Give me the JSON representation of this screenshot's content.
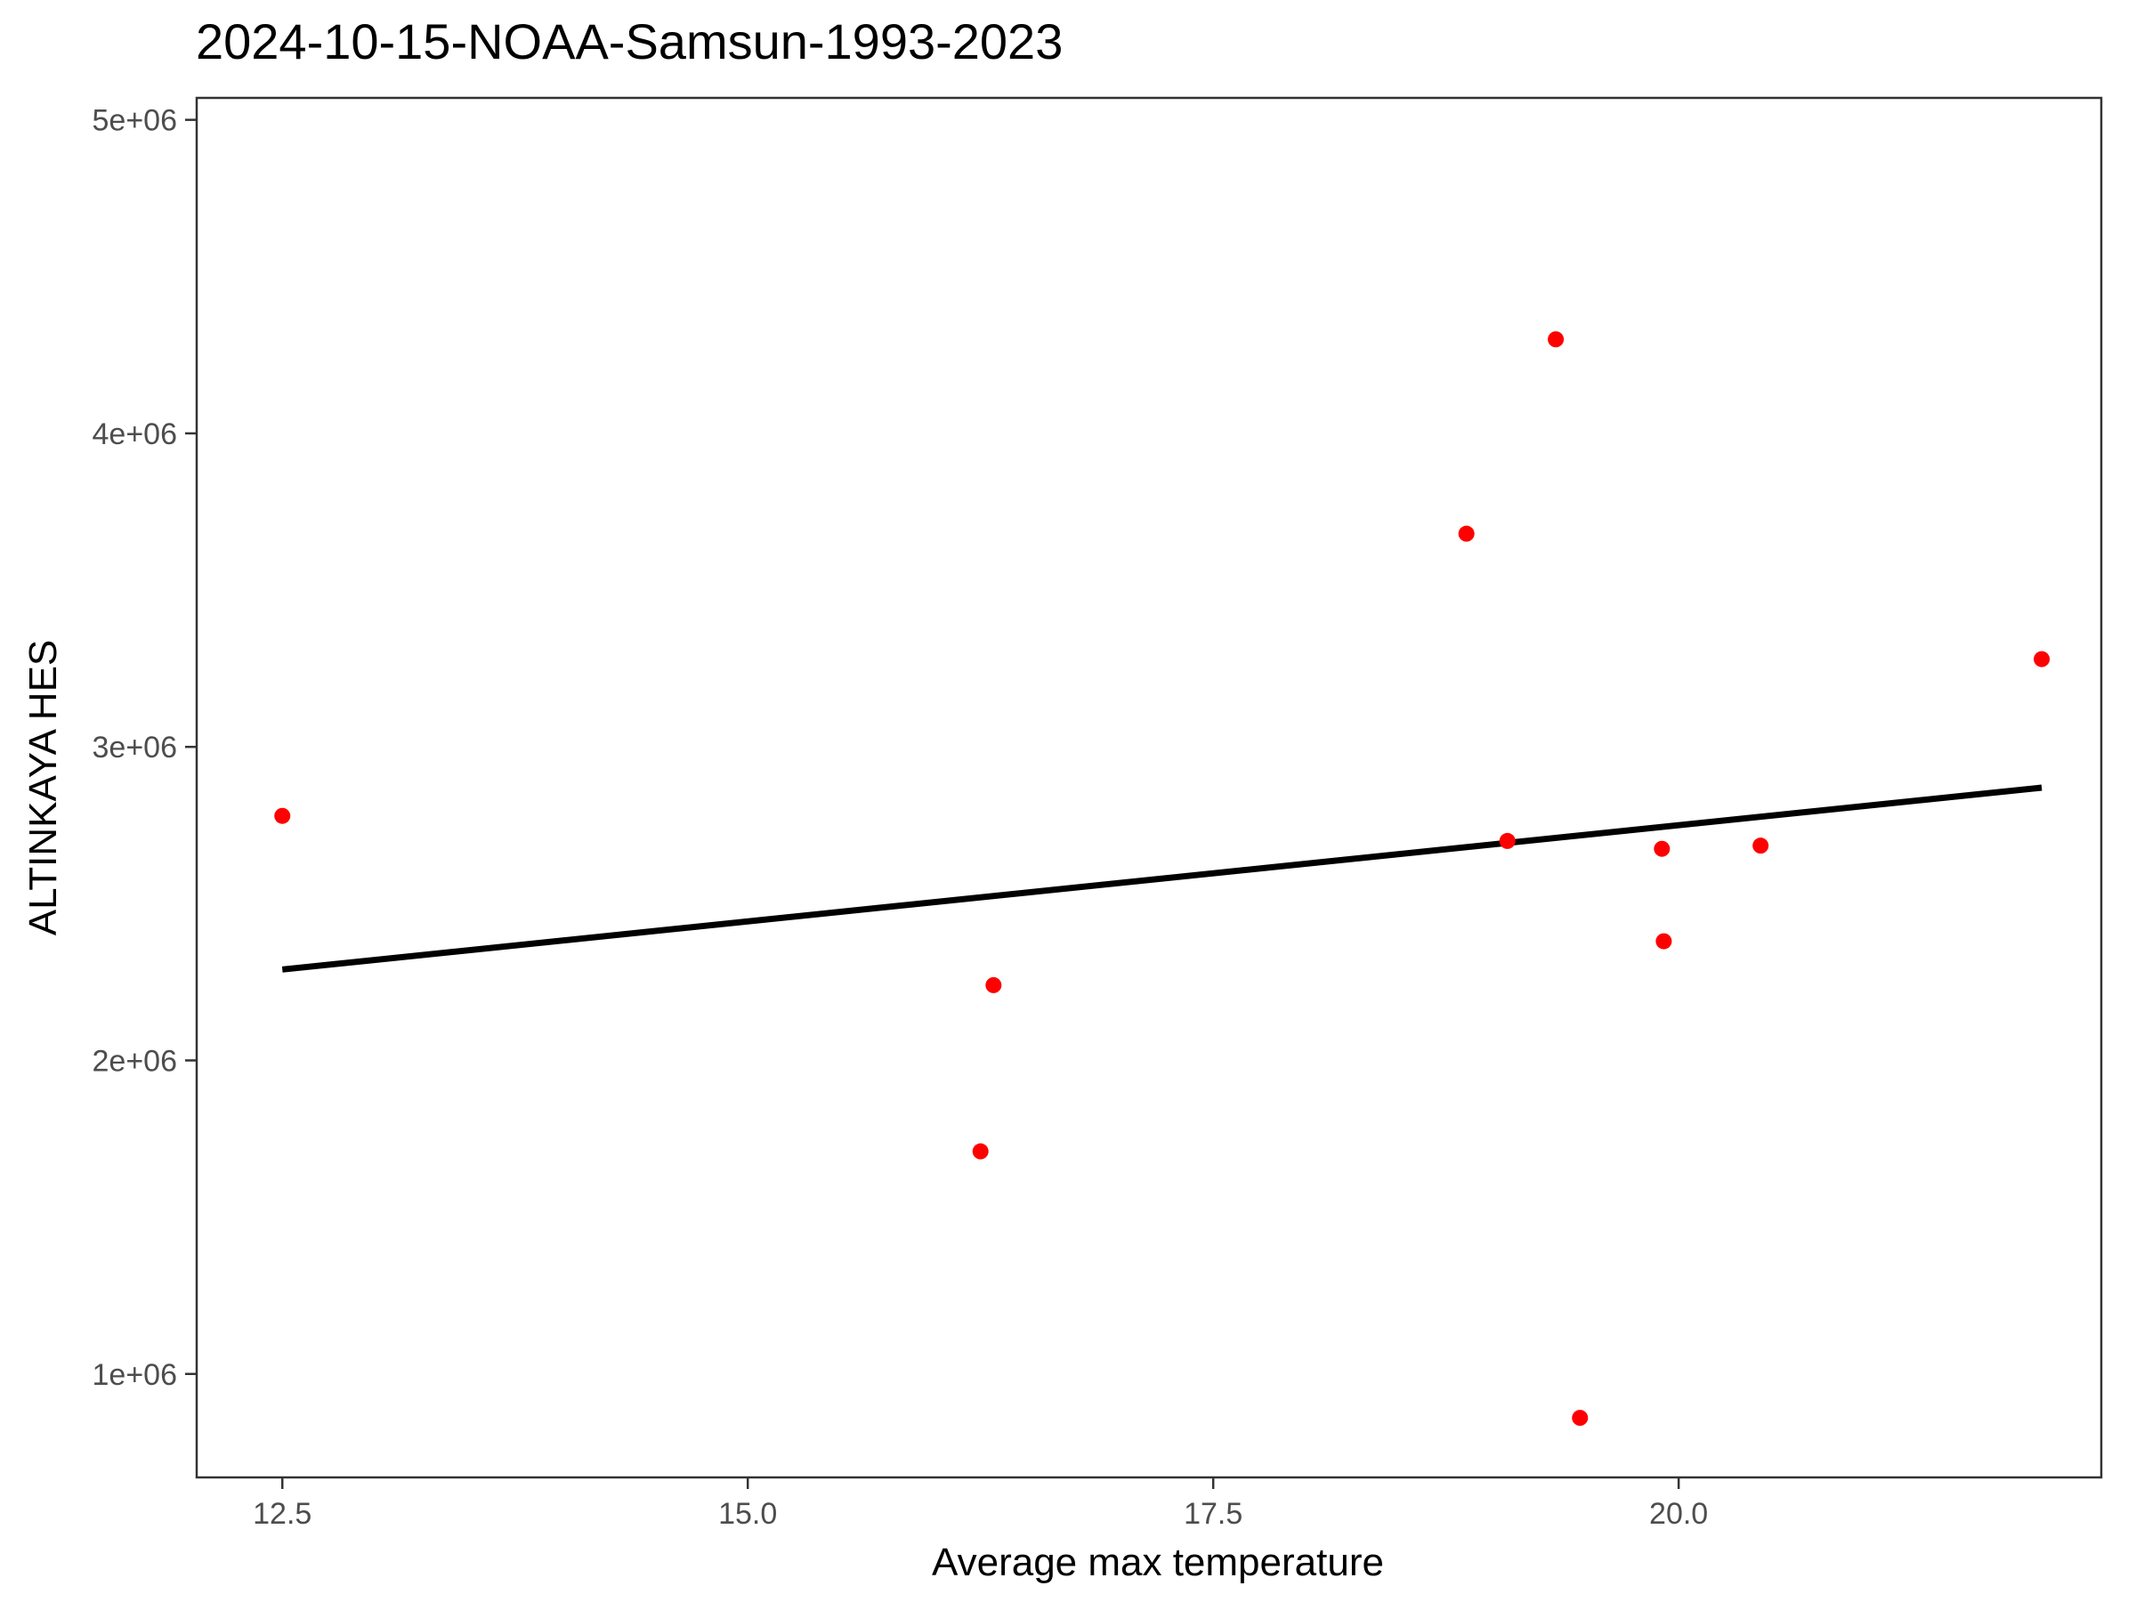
{
  "chart_data": {
    "type": "scatter",
    "title": "2024-10-15-NOAA-Samsun-1993-2023",
    "xlabel": "Average max temperature",
    "ylabel": "ALTINKAYA HES",
    "xlim": [
      12.04,
      22.27
    ],
    "ylim": [
      670000,
      5070000
    ],
    "x_ticks": [
      12.5,
      15.0,
      17.5,
      20.0
    ],
    "x_tick_labels": [
      "12.5",
      "15.0",
      "17.5",
      "20.0"
    ],
    "y_ticks": [
      1000000,
      2000000,
      3000000,
      4000000,
      5000000
    ],
    "y_tick_labels": [
      "1e+06",
      "2e+06",
      "3e+06",
      "4e+06",
      "5e+06"
    ],
    "grid": false,
    "point_color": "#ff0000",
    "line_color": "#000000",
    "points": [
      {
        "x": 12.5,
        "y": 2780000
      },
      {
        "x": 16.25,
        "y": 1710000
      },
      {
        "x": 16.32,
        "y": 2240000
      },
      {
        "x": 18.86,
        "y": 3680000
      },
      {
        "x": 19.08,
        "y": 2700000
      },
      {
        "x": 19.34,
        "y": 4300000
      },
      {
        "x": 19.47,
        "y": 860000
      },
      {
        "x": 19.91,
        "y": 2675000
      },
      {
        "x": 19.92,
        "y": 2380000
      },
      {
        "x": 20.44,
        "y": 2685000
      },
      {
        "x": 21.95,
        "y": 3280000
      }
    ],
    "trend_line": {
      "x": [
        12.5,
        21.95
      ],
      "y": [
        2290000,
        2870000
      ]
    }
  }
}
